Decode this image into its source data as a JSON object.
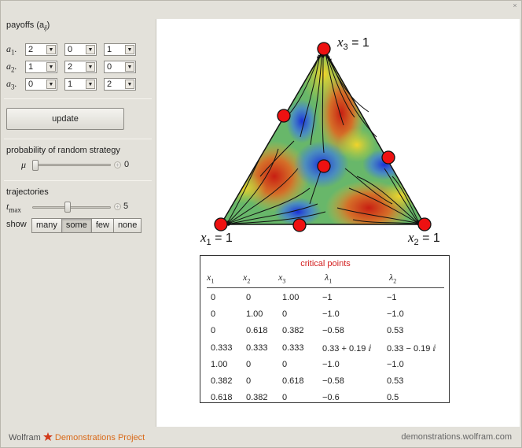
{
  "window": {
    "close_glyph": "×"
  },
  "payoffs": {
    "title": "payoffs (a",
    "title_sub": "ij",
    "title_close": ")",
    "rows": [
      {
        "label": "a",
        "sub": "1",
        "values": [
          "2",
          "0",
          "1"
        ]
      },
      {
        "label": "a",
        "sub": "2",
        "values": [
          "1",
          "2",
          "0"
        ]
      },
      {
        "label": "a",
        "sub": "3",
        "values": [
          "0",
          "1",
          "2"
        ]
      }
    ]
  },
  "update_label": "update",
  "random_strategy": {
    "title": "probability of random strategy",
    "symbol": "μ",
    "value": "0",
    "fraction": 0.0
  },
  "trajectories": {
    "title": "trajectories",
    "symbol": "t",
    "symbol_sub": "max",
    "value": "5",
    "fraction": 0.45,
    "show_label": "show",
    "options": [
      "many",
      "some",
      "few",
      "none"
    ],
    "selected": "some"
  },
  "simplex": {
    "vertex_top": {
      "var": "x",
      "sub": "3",
      "rest": " = 1"
    },
    "vertex_left": {
      "var": "x",
      "sub": "1",
      "rest": " = 1"
    },
    "vertex_right": {
      "var": "x",
      "sub": "2",
      "rest": " = 1"
    },
    "critical_point_color": "#ee1111"
  },
  "critical_table": {
    "title": "critical points",
    "headers": [
      {
        "var": "x",
        "sub": "1"
      },
      {
        "var": "x",
        "sub": "2"
      },
      {
        "var": "x",
        "sub": "3"
      },
      {
        "var": "λ",
        "sub": "1"
      },
      {
        "var": "λ",
        "sub": "2"
      }
    ],
    "rows": [
      [
        "0",
        "0",
        "1.00",
        "−1",
        "−1"
      ],
      [
        "0",
        "1.00",
        "0",
        "−1.0",
        "−1.0"
      ],
      [
        "0",
        "0.618",
        "0.382",
        "−0.58",
        "0.53"
      ],
      [
        "0.333",
        "0.333",
        "0.333",
        "0.33 + 0.19 ⅈ",
        "0.33 − 0.19 ⅈ"
      ],
      [
        "1.00",
        "0",
        "0",
        "−1.0",
        "−1.0"
      ],
      [
        "0.382",
        "0",
        "0.618",
        "−0.58",
        "0.53"
      ],
      [
        "0.618",
        "0.382",
        "0",
        "−0.6",
        "0.5"
      ]
    ]
  },
  "footer": {
    "brand": "Wolfram",
    "project": "Demonstrations Project",
    "url": "demonstrations.wolfram.com"
  }
}
